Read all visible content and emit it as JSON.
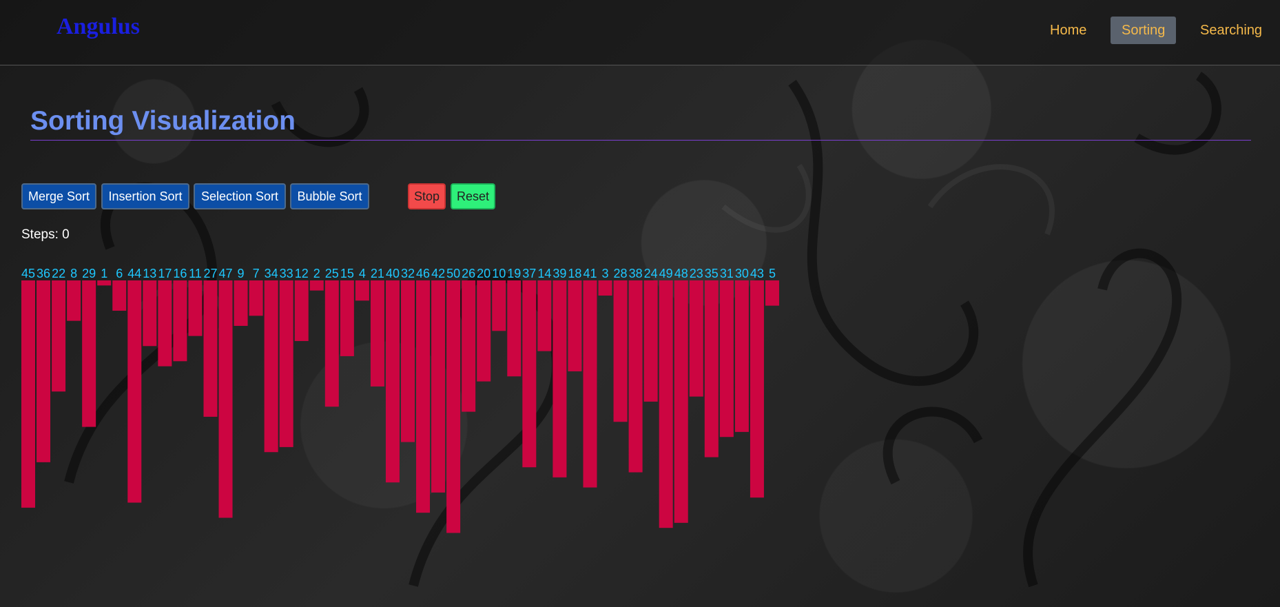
{
  "nav": {
    "brand": "Angulus",
    "links": [
      {
        "label": "Home"
      },
      {
        "label": "Sorting",
        "active": true
      },
      {
        "label": "Searching"
      }
    ]
  },
  "page": {
    "title": "Sorting Visualization",
    "buttons": {
      "merge": "Merge Sort",
      "insertion": "Insertion Sort",
      "selection": "Selection Sort",
      "bubble": "Bubble Sort",
      "stop": "Stop",
      "reset": "Reset"
    },
    "steps_label": "Steps:",
    "steps_value": "0"
  },
  "colors": {
    "bar": "#cc0541",
    "value_label": "#1ec8ff",
    "accent": "#6c8ff0"
  },
  "chart_data": {
    "type": "bar",
    "values": [
      45,
      36,
      22,
      8,
      29,
      1,
      6,
      44,
      13,
      17,
      16,
      11,
      27,
      47,
      9,
      7,
      34,
      33,
      12,
      2,
      25,
      15,
      4,
      21,
      40,
      32,
      46,
      42,
      50,
      26,
      20,
      10,
      19,
      37,
      14,
      39,
      18,
      41,
      3,
      28,
      38,
      24,
      49,
      48,
      23,
      35,
      31,
      30,
      43,
      5
    ],
    "ylim": [
      0,
      50
    ],
    "xlabel": "",
    "ylabel": ""
  }
}
